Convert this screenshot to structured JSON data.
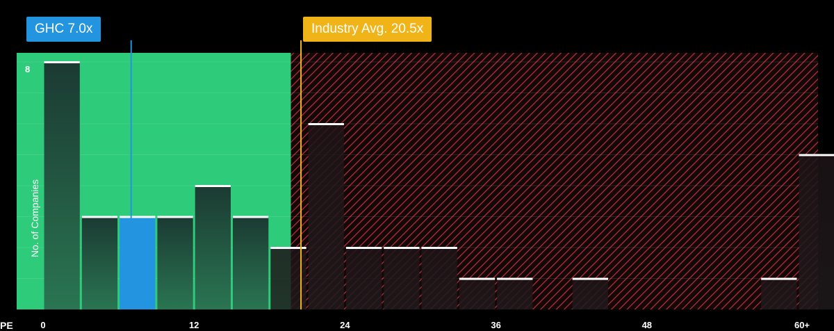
{
  "chart_data": {
    "type": "bar",
    "xlabel": "PE",
    "ylabel": "No. of Companies",
    "xlim": [
      0,
      60
    ],
    "ylim": [
      0,
      8
    ],
    "x_ticks": [
      "0",
      "12",
      "24",
      "36",
      "48",
      "60+"
    ],
    "y_ticks": [
      "8"
    ],
    "bin_width": 3,
    "bins": [
      {
        "start": 0,
        "value": 8
      },
      {
        "start": 3,
        "value": 3
      },
      {
        "start": 6,
        "value": 3
      },
      {
        "start": 9,
        "value": 3
      },
      {
        "start": 12,
        "value": 4
      },
      {
        "start": 15,
        "value": 3
      },
      {
        "start": 18,
        "value": 2
      },
      {
        "start": 21,
        "value": 6
      },
      {
        "start": 24,
        "value": 2
      },
      {
        "start": 27,
        "value": 2
      },
      {
        "start": 30,
        "value": 2
      },
      {
        "start": 33,
        "value": 1
      },
      {
        "start": 36,
        "value": 1
      },
      {
        "start": 42,
        "value": 1
      },
      {
        "start": 57,
        "value": 1
      },
      {
        "start": 60,
        "value": 5
      }
    ],
    "subject": {
      "label": "GHC 7.0x",
      "value": 7.0,
      "color": "#2394df"
    },
    "industry": {
      "label": "Industry Avg. 20.5x",
      "value": 20.5,
      "color": "#f0b418"
    },
    "colors": {
      "good_zone": "#2ecc7a",
      "bad_zone_hatch": "#c0303c",
      "bar_fill": "#1d3b31",
      "bar_top": "#ffffff",
      "subject_bar": "#2394df"
    }
  }
}
